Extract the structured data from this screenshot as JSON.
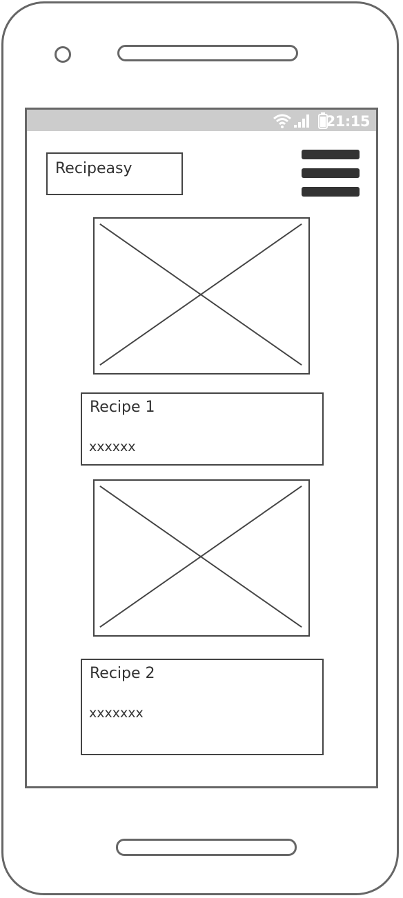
{
  "status_bar": {
    "time": "21:15",
    "icons": [
      "wifi-icon",
      "signal-icon",
      "battery-icon"
    ]
  },
  "header": {
    "logo_text": "Recipeasy",
    "menu_icon": "hamburger-menu-icon"
  },
  "recipes": [
    {
      "title": "Recipe 1",
      "description": "xxxxxx",
      "image_icon": "image-placeholder-icon"
    },
    {
      "title": "Recipe 2",
      "description": "xxxxxxx",
      "image_icon": "image-placeholder-icon"
    }
  ],
  "colors": {
    "frame": "#666666",
    "status_bar_bg": "#cccccc",
    "ink": "#333333"
  }
}
